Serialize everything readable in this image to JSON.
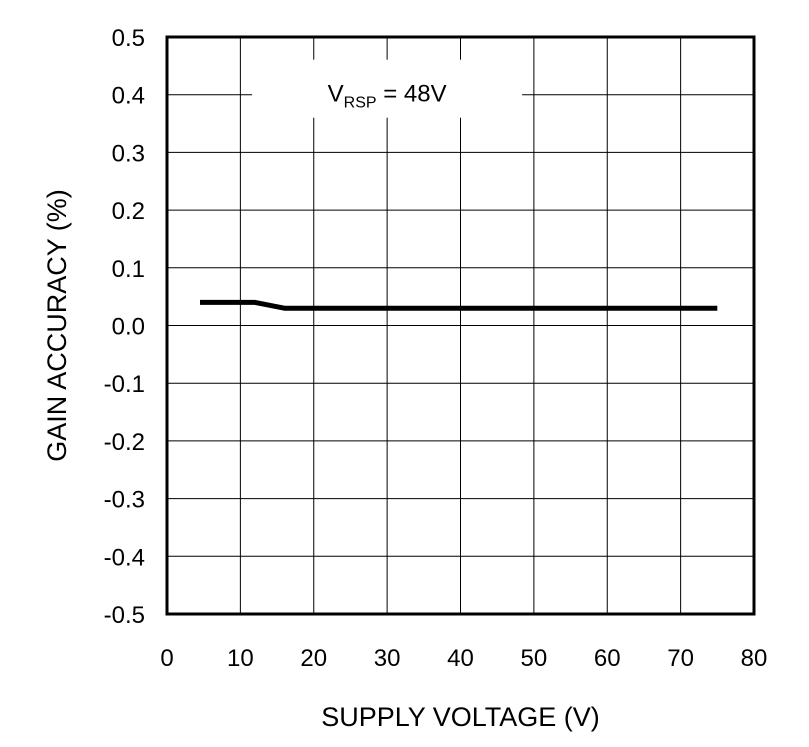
{
  "chart_data": {
    "type": "line",
    "title": "",
    "xlabel": "SUPPLY VOLTAGE (V)",
    "ylabel": "GAIN ACCURACY (%)",
    "xlim": [
      0,
      80
    ],
    "ylim": [
      -0.5,
      0.5
    ],
    "x_ticks": [
      "0",
      "10",
      "20",
      "30",
      "40",
      "50",
      "60",
      "70",
      "80"
    ],
    "y_ticks": [
      "0.5",
      "0.4",
      "0.3",
      "0.2",
      "0.1",
      "0.0",
      "-0.1",
      "-0.2",
      "-0.3",
      "-0.4",
      "-0.5"
    ],
    "grid": true,
    "annotation": {
      "main": "V",
      "sub": "RSP",
      "rest": " = 48V",
      "x": 30,
      "y": 0.4
    },
    "series": [
      {
        "color": "#000000",
        "x": [
          4.5,
          12,
          16,
          20,
          30,
          40,
          50,
          60,
          70,
          75
        ],
        "y": [
          0.04,
          0.04,
          0.03,
          0.03,
          0.03,
          0.03,
          0.03,
          0.03,
          0.03,
          0.03
        ]
      }
    ]
  }
}
